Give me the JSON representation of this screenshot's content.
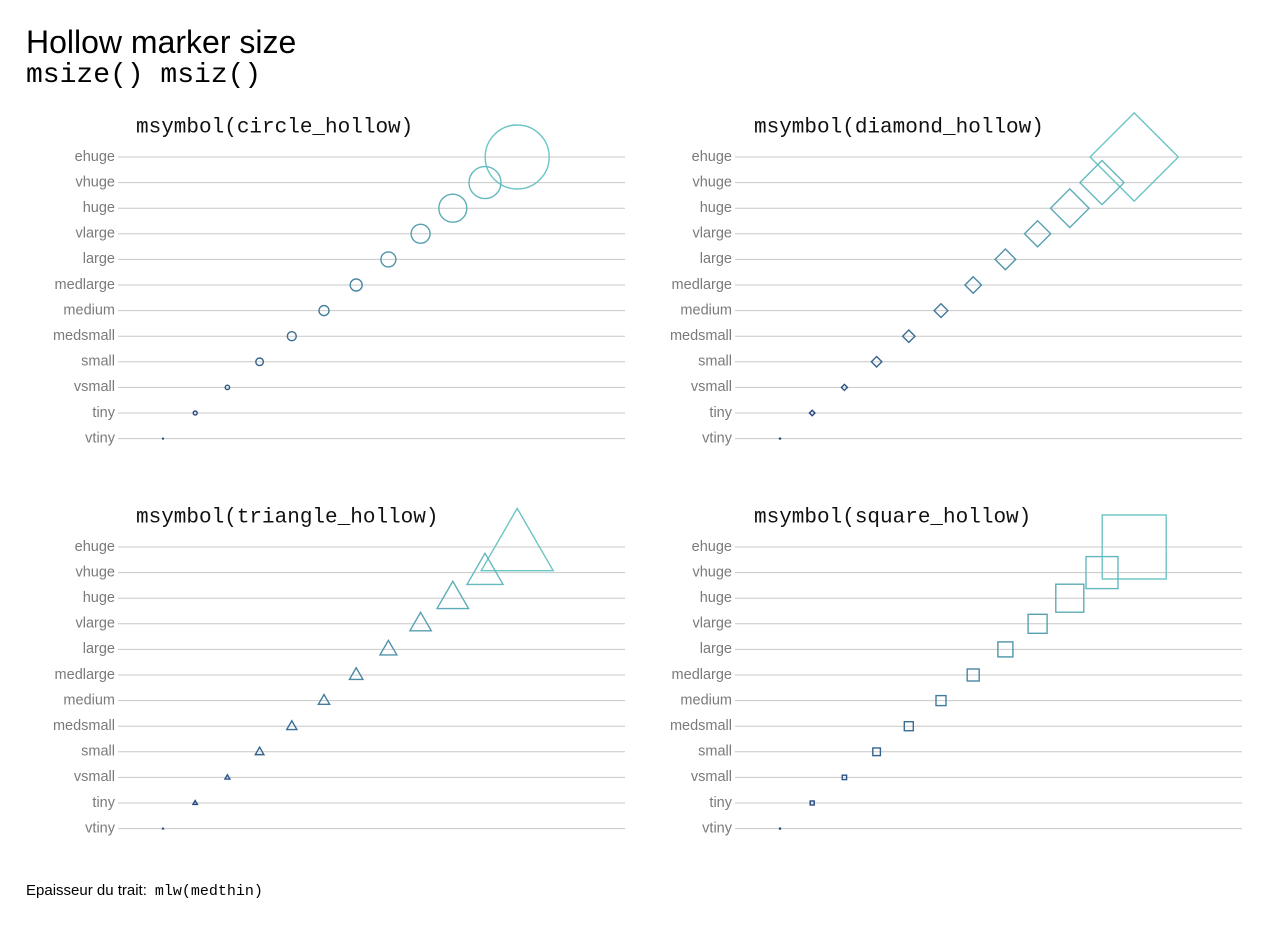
{
  "title": "Hollow marker size",
  "subtitle": "msize() msiz()",
  "footer": {
    "label": "Epaisseur du trait:",
    "value": "mlw(medthin)"
  },
  "colors": {
    "grid": "#c8c8c8",
    "label": "#7a7a7a",
    "title": "#111111",
    "marker_small": "#1f3d7a",
    "marker_large": "#6cc5c5"
  },
  "chart_data": [
    {
      "type": "scatter",
      "title": "msymbol(circle_hollow)",
      "marker": "circle",
      "categories": [
        "ehuge",
        "vhuge",
        "huge",
        "vlarge",
        "large",
        "medlarge",
        "medium",
        "medsmall",
        "small",
        "vsmall",
        "tiny",
        "vtiny"
      ],
      "sizes": [
        32,
        16,
        14,
        9.5,
        7.5,
        6,
        5,
        4.5,
        3.8,
        2.2,
        2,
        0.6
      ],
      "x": [
        12,
        11,
        10,
        9,
        8,
        7,
        6,
        5,
        4,
        3,
        2,
        1
      ]
    },
    {
      "type": "scatter",
      "title": "msymbol(diamond_hollow)",
      "marker": "diamond",
      "categories": [
        "ehuge",
        "vhuge",
        "huge",
        "vlarge",
        "large",
        "medlarge",
        "medium",
        "medsmall",
        "small",
        "vsmall",
        "tiny",
        "vtiny"
      ],
      "sizes": [
        32,
        16,
        14,
        9.5,
        7.5,
        6,
        5,
        4.5,
        3.8,
        2.2,
        2,
        0.6
      ],
      "x": [
        12,
        11,
        10,
        9,
        8,
        7,
        6,
        5,
        4,
        3,
        2,
        1
      ]
    },
    {
      "type": "scatter",
      "title": "msymbol(triangle_hollow)",
      "marker": "triangle",
      "categories": [
        "ehuge",
        "vhuge",
        "huge",
        "vlarge",
        "large",
        "medlarge",
        "medium",
        "medsmall",
        "small",
        "vsmall",
        "tiny",
        "vtiny"
      ],
      "sizes": [
        32,
        16,
        14,
        9.5,
        7.5,
        6,
        5,
        4.5,
        3.8,
        2.2,
        2,
        0.6
      ],
      "x": [
        12,
        11,
        10,
        9,
        8,
        7,
        6,
        5,
        4,
        3,
        2,
        1
      ]
    },
    {
      "type": "scatter",
      "title": "msymbol(square_hollow)",
      "marker": "square",
      "categories": [
        "ehuge",
        "vhuge",
        "huge",
        "vlarge",
        "large",
        "medlarge",
        "medium",
        "medsmall",
        "small",
        "vsmall",
        "tiny",
        "vtiny"
      ],
      "sizes": [
        32,
        16,
        14,
        9.5,
        7.5,
        6,
        5,
        4.5,
        3.8,
        2.2,
        2,
        0.6
      ],
      "x": [
        12,
        11,
        10,
        9,
        8,
        7,
        6,
        5,
        4,
        3,
        2,
        1
      ]
    }
  ]
}
